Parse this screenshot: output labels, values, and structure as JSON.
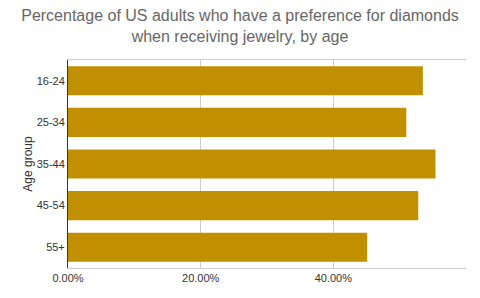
{
  "chart_data": {
    "type": "bar",
    "orientation": "horizontal",
    "title": "Percentage of US adults who have a preference for diamonds\nwhen receiving jewelry, by age",
    "y_label": "Age group",
    "categories": [
      "16-24",
      "25-34",
      "35-44",
      "45-54",
      "55+"
    ],
    "values": [
      53.5,
      51,
      55.4,
      52.8,
      45.1
    ],
    "color": "#c09000",
    "xlim": [
      0,
      60
    ],
    "xticks": [
      {
        "value": 0,
        "label": "0.00%"
      },
      {
        "value": 20,
        "label": "20.00%"
      },
      {
        "value": 40,
        "label": "40.00%"
      }
    ],
    "grid": true
  }
}
